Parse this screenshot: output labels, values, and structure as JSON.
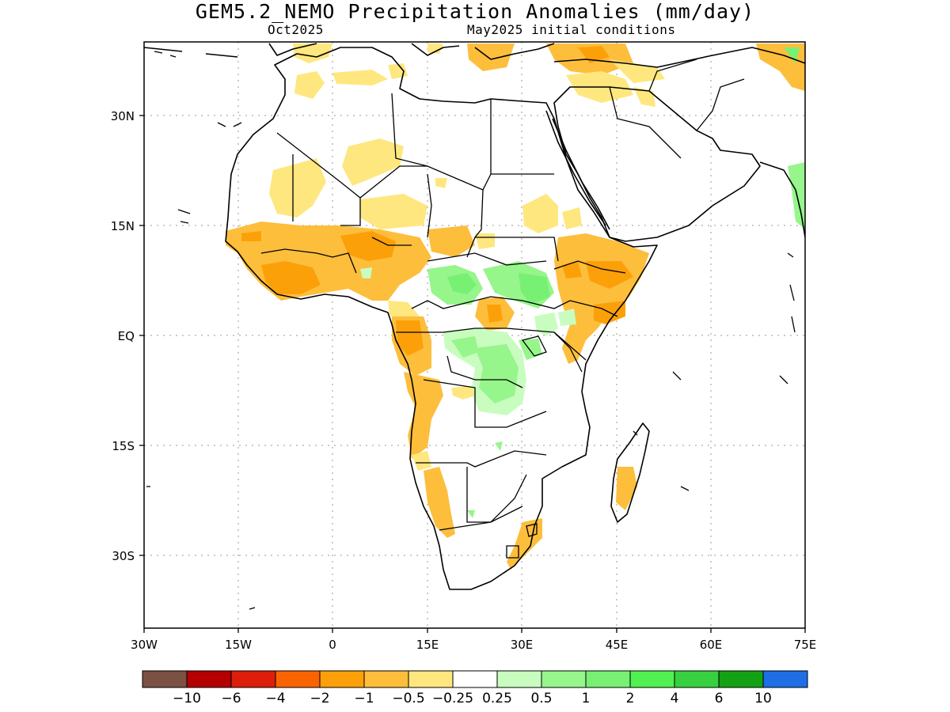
{
  "title": "GEM5.2_NEMO Precipitation Anomalies (mm/day)",
  "valid_month": "Oct2025",
  "initial_conditions": "May2025 initial conditions",
  "map": {
    "lon_ticks": [
      "30W",
      "15W",
      "0",
      "15E",
      "30E",
      "45E",
      "60E",
      "75E"
    ],
    "lat_ticks": [
      "30N",
      "15N",
      "EQ",
      "15S",
      "30S"
    ]
  },
  "colorbar": {
    "colors": [
      "#7b5143",
      "#b40000",
      "#dc1e0a",
      "#fa6400",
      "#fca00a",
      "#fdbe3c",
      "#fee77f",
      "#ffffff",
      "#c8fdbf",
      "#96f58b",
      "#78f074",
      "#50f050",
      "#37d13f",
      "#14a114",
      "#1e6ee6"
    ],
    "labels": [
      "−10",
      "−6",
      "−4",
      "−2",
      "−1",
      "−0.5",
      "−0.25",
      "0.25",
      "0.5",
      "1",
      "2",
      "4",
      "6",
      "10"
    ]
  }
}
